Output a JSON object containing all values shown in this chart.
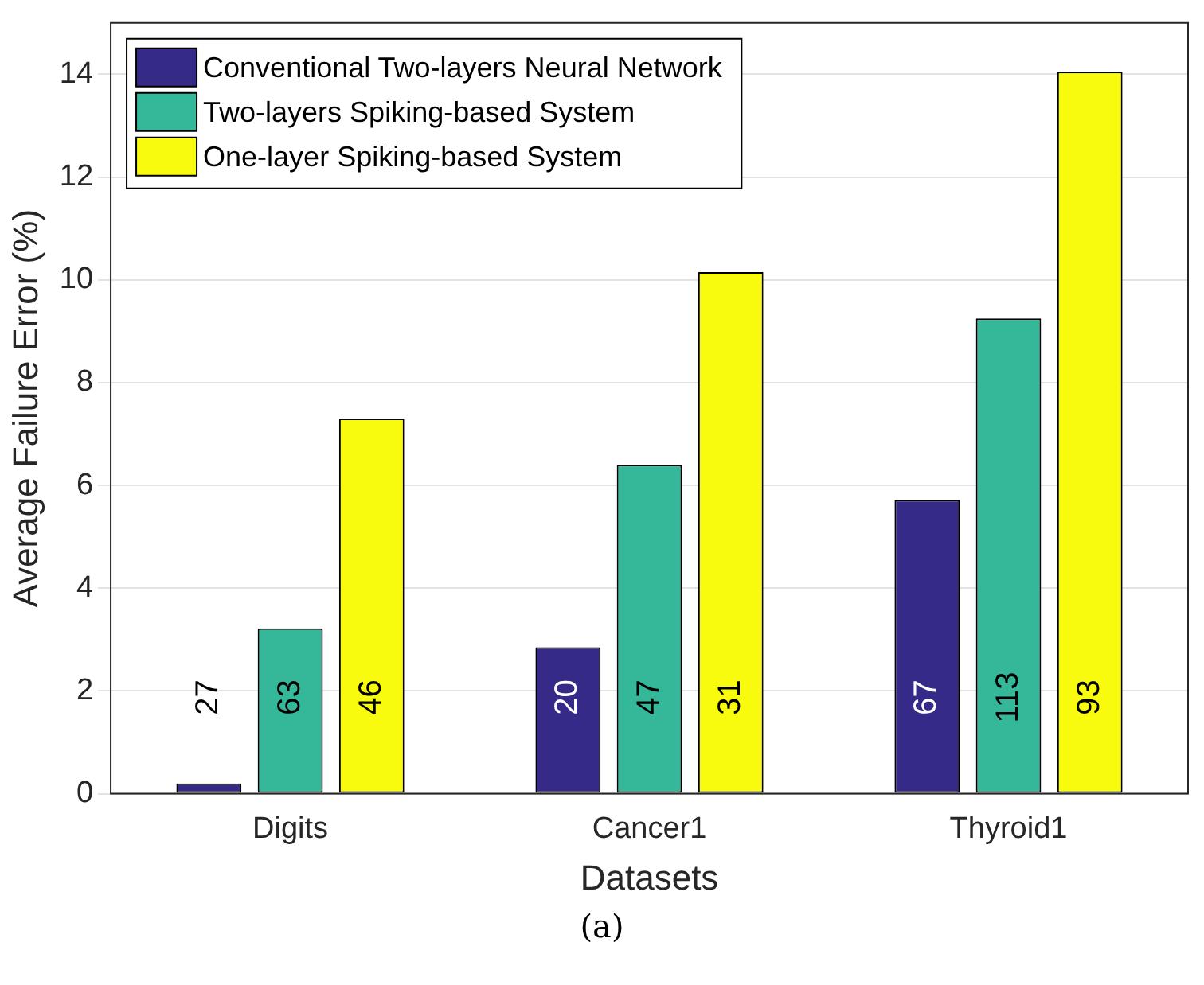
{
  "chart_data": {
    "type": "bar",
    "xlabel": "Datasets",
    "ylabel": "Average Failure Error (%)",
    "annotations": [
      "27",
      "63",
      "46",
      "20",
      "47",
      "31",
      "67",
      "113",
      "93",
      "(a)"
    ],
    "categories": [
      "Digits",
      "Cancer1",
      "Thyroid1"
    ],
    "series": [
      {
        "name": "Conventional Two-layers Neural Network",
        "color": "#352a87",
        "values": [
          0.2,
          2.85,
          5.72
        ]
      },
      {
        "name": "Two-layers Spiking-based System",
        "color": "#35b79a",
        "values": [
          3.22,
          6.4,
          9.25
        ]
      },
      {
        "name": "One-layer Spiking-based System",
        "color": "#f9fb0e",
        "values": [
          7.3,
          10.15,
          14.05
        ]
      }
    ],
    "ylim": [
      0,
      15
    ],
    "yticks": [
      0,
      2,
      4,
      6,
      8,
      10,
      12,
      14
    ],
    "grid": "y",
    "legend": "top left"
  }
}
